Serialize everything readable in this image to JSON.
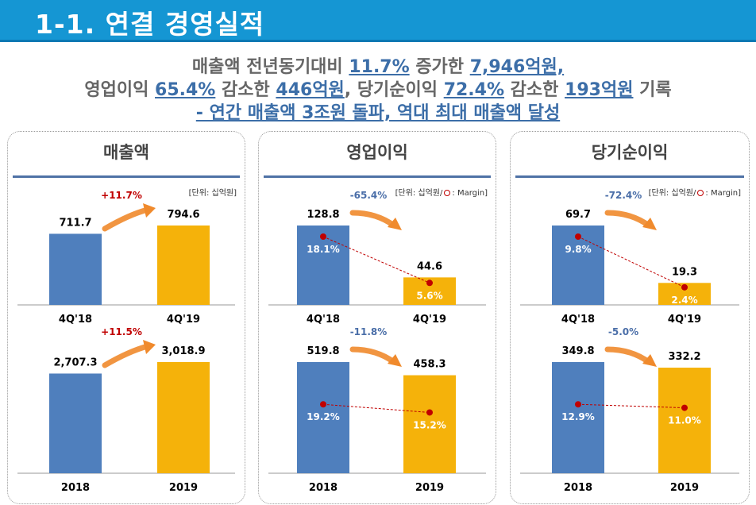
{
  "header": {
    "title": "1-1. 연결 경영실적"
  },
  "summary": {
    "line1": [
      {
        "t": "매출액 전년동기대비 ",
        "hl": false
      },
      {
        "t": "11.7%",
        "hl": true
      },
      {
        "t": " 증가한 ",
        "hl": false
      },
      {
        "t": "7,946억원,",
        "hl": true
      }
    ],
    "line2": [
      {
        "t": "영업이익 ",
        "hl": false
      },
      {
        "t": "65.4%",
        "hl": true
      },
      {
        "t": " 감소한 ",
        "hl": false
      },
      {
        "t": "446억원",
        "hl": true
      },
      {
        "t": ", 당기순이익 ",
        "hl": false
      },
      {
        "t": "72.4%",
        "hl": true
      },
      {
        "t": " 감소한 ",
        "hl": false
      },
      {
        "t": "193억원",
        "hl": true
      },
      {
        "t": " 기록",
        "hl": false
      }
    ],
    "line3": [
      {
        "t": "- 연간 매출액 3조원 돌파, 역대 최대 매출액 달성",
        "hl": true
      }
    ]
  },
  "colors": {
    "prev": "#4f7fbd",
    "curr": "#f5b20a",
    "margin": "#c00000",
    "up": "#c00000",
    "down": "#4a6ea8",
    "arrow": "#f08a2c"
  },
  "panels": [
    {
      "title": "매출액",
      "unit": "[단위: 십억원]",
      "margin_legend": ""
    },
    {
      "title": "영업이익",
      "unit": "[단위: 십억원/",
      "margin_legend": ": Margin]"
    },
    {
      "title": "당기순이익",
      "unit": "[단위: 십억원/",
      "margin_legend": ": Margin]"
    }
  ],
  "chart_data": [
    {
      "panel": 0,
      "type": "bar",
      "categories": [
        "4Q'18",
        "4Q'19"
      ],
      "values": [
        711.7,
        794.6
      ],
      "value_labels": [
        "711.7",
        "794.6"
      ],
      "change": "+11.7%",
      "direction": "up",
      "margins": null
    },
    {
      "panel": 0,
      "type": "bar",
      "categories": [
        "2018",
        "2019"
      ],
      "values": [
        2707.3,
        3018.9
      ],
      "value_labels": [
        "2,707.3",
        "3,018.9"
      ],
      "change": "+11.5%",
      "direction": "up",
      "margins": null
    },
    {
      "panel": 1,
      "type": "bar",
      "categories": [
        "4Q'18",
        "4Q'19"
      ],
      "values": [
        128.8,
        44.6
      ],
      "value_labels": [
        "128.8",
        "44.6"
      ],
      "change": "-65.4%",
      "direction": "down",
      "margins": [
        18.1,
        5.6
      ],
      "margin_labels": [
        "18.1%",
        "5.6%"
      ]
    },
    {
      "panel": 1,
      "type": "bar",
      "categories": [
        "2018",
        "2019"
      ],
      "values": [
        519.8,
        458.3
      ],
      "value_labels": [
        "519.8",
        "458.3"
      ],
      "change": "-11.8%",
      "direction": "down",
      "margins": [
        19.2,
        15.2
      ],
      "margin_labels": [
        "19.2%",
        "15.2%"
      ]
    },
    {
      "panel": 2,
      "type": "bar",
      "categories": [
        "4Q'18",
        "4Q'19"
      ],
      "values": [
        69.7,
        19.3
      ],
      "value_labels": [
        "69.7",
        "19.3"
      ],
      "change": "-72.4%",
      "direction": "down",
      "margins": [
        9.8,
        2.4
      ],
      "margin_labels": [
        "9.8%",
        "2.4%"
      ]
    },
    {
      "panel": 2,
      "type": "bar",
      "categories": [
        "2018",
        "2019"
      ],
      "values": [
        349.8,
        332.2
      ],
      "value_labels": [
        "349.8",
        "332.2"
      ],
      "change": "-5.0%",
      "direction": "down",
      "margins": [
        12.9,
        11.0
      ],
      "margin_labels": [
        "12.9%",
        "11.0%"
      ]
    }
  ]
}
